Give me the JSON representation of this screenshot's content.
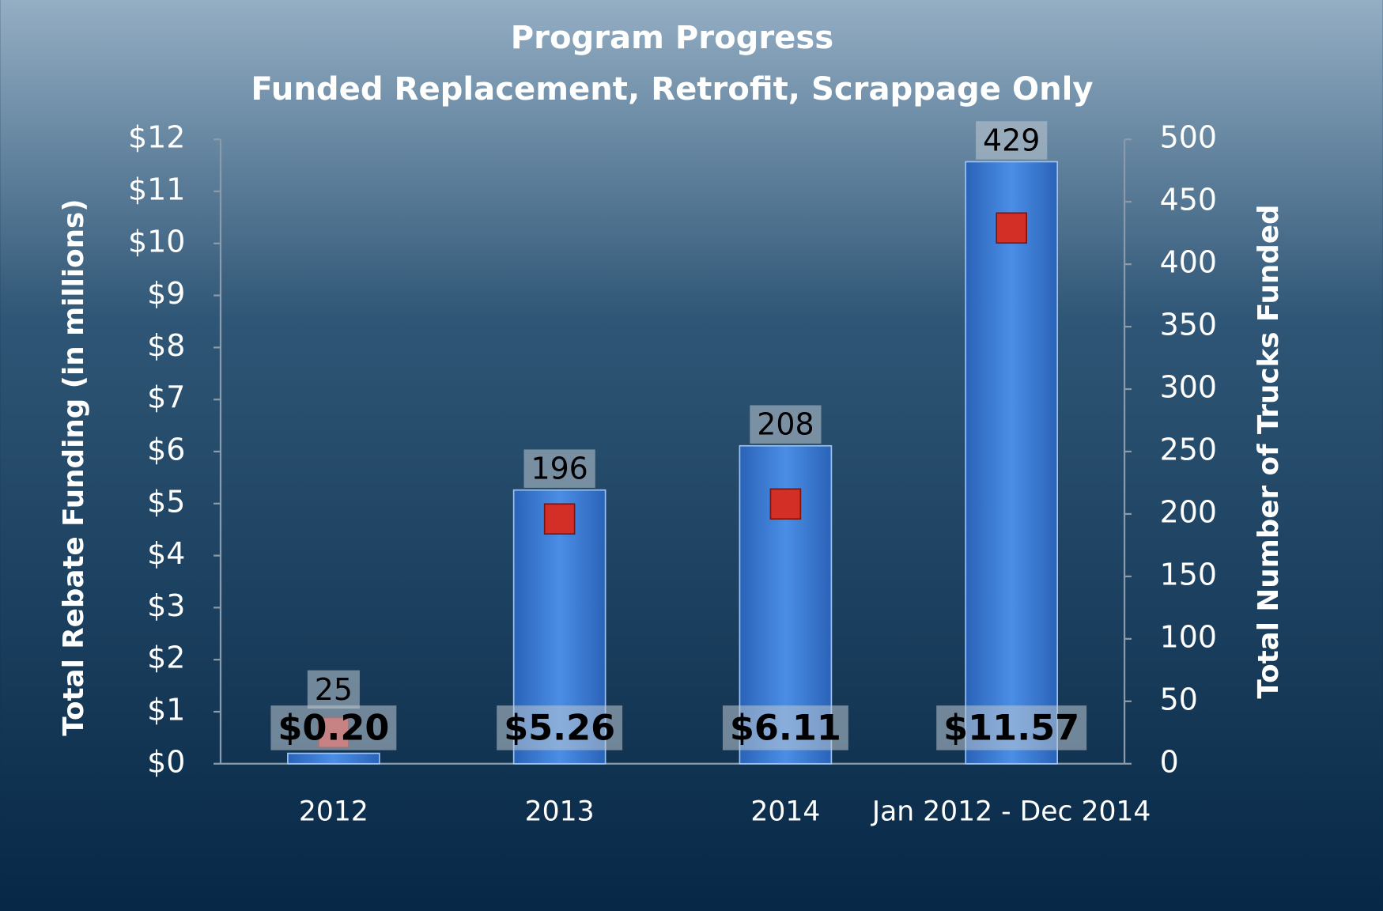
{
  "chart_data": {
    "type": "bar",
    "title": "Program Progress",
    "subtitle": "Funded Replacement, Retrofit, Scrappage Only",
    "y_label": "Total Rebate Funding (in millions)",
    "y2_label": "Total Number of Trucks Funded",
    "categories": [
      "2012",
      "2013",
      "2014",
      "Jan 2012 - Dec 2014"
    ],
    "series": [
      {
        "type": "bar",
        "color": "#3b7fd8",
        "values": [
          0.2,
          5.26,
          6.11,
          11.57
        ],
        "value_labels": [
          "$0.20",
          "$5.26",
          "$6.11",
          "$11.57"
        ]
      },
      {
        "type": "scatter",
        "axis": "y2",
        "color": "#d32f27",
        "values": [
          25,
          196,
          208,
          429
        ]
      }
    ],
    "ylim": [
      0,
      12
    ],
    "yticks": [
      {
        "value": 0,
        "label": "$0"
      },
      {
        "value": 1,
        "label": "$1"
      },
      {
        "value": 2,
        "label": "$2"
      },
      {
        "value": 3,
        "label": "$3"
      },
      {
        "value": 4,
        "label": "$4"
      },
      {
        "value": 5,
        "label": "$5"
      },
      {
        "value": 6,
        "label": "$6"
      },
      {
        "value": 7,
        "label": "$7"
      },
      {
        "value": 8,
        "label": "$8"
      },
      {
        "value": 9,
        "label": "$9"
      },
      {
        "value": 10,
        "label": "$10"
      },
      {
        "value": 11,
        "label": "$11"
      },
      {
        "value": 12,
        "label": "$12"
      }
    ],
    "y2lim": [
      0,
      500
    ],
    "y2ticks": [
      0,
      50,
      100,
      150,
      200,
      250,
      300,
      350,
      400,
      450,
      500
    ],
    "grid": false
  }
}
